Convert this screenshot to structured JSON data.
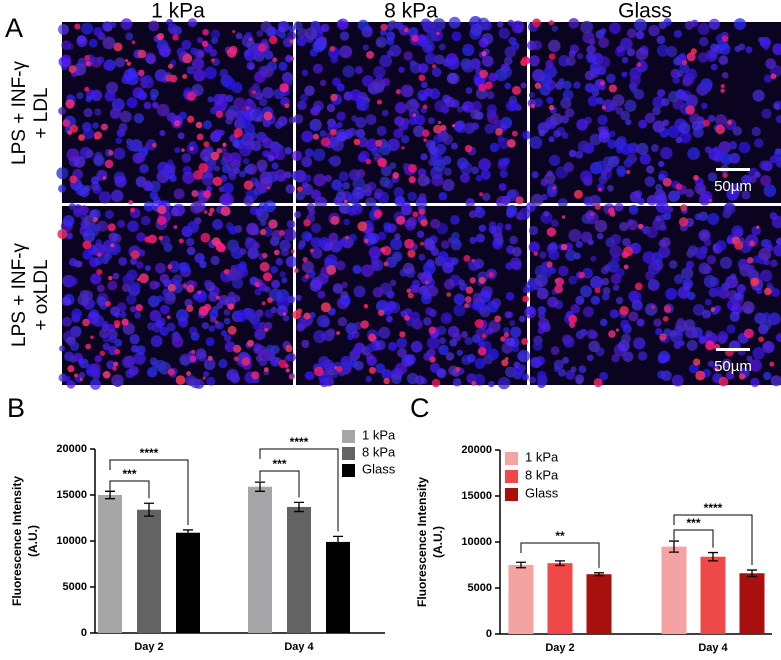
{
  "panel_labels": [
    "A",
    "B",
    "C"
  ],
  "microscopy": {
    "columns": [
      "1 kPa",
      "8 kPa",
      "Glass"
    ],
    "rows": [
      [
        "LPS + INF-γ",
        "+ LDL"
      ],
      [
        "LPS + INF-γ",
        "+ oxLDL"
      ]
    ],
    "scale_bar": "50µm"
  },
  "chart_data": [
    {
      "type": "bar",
      "ylabel": [
        "Fluorescence Intensity",
        "(A.U.)"
      ],
      "categories": [
        "Day 2",
        "Day 4"
      ],
      "series": [
        {
          "name": "1 kPa",
          "color": "#a6a6a8",
          "values": [
            15000,
            15900
          ],
          "errors": [
            400,
            500
          ]
        },
        {
          "name": "8 kPa",
          "color": "#636363",
          "values": [
            13400,
            13700
          ],
          "errors": [
            700,
            500
          ]
        },
        {
          "name": "Glass",
          "color": "#000000",
          "values": [
            10900,
            9900
          ],
          "errors": [
            300,
            600
          ]
        }
      ],
      "ylim": [
        0,
        20000
      ],
      "yticks": [
        0,
        5000,
        10000,
        15000,
        20000
      ],
      "annotations": [
        "***",
        "****",
        "***",
        "****"
      ]
    },
    {
      "type": "bar",
      "ylabel": [
        "Fluorescence Intensity",
        "(A.U.)"
      ],
      "categories": [
        "Day 2",
        "Day 4"
      ],
      "series": [
        {
          "name": "1 kPa",
          "color": "#f4a3a3",
          "values": [
            7500,
            9500
          ],
          "errors": [
            300,
            600
          ]
        },
        {
          "name": "8 kPa",
          "color": "#ef4848",
          "values": [
            7700,
            8400
          ],
          "errors": [
            250,
            450
          ]
        },
        {
          "name": "Glass",
          "color": "#a80f0f",
          "values": [
            6500,
            6600
          ],
          "errors": [
            150,
            350
          ]
        }
      ],
      "ylim": [
        0,
        20000
      ],
      "yticks": [
        0,
        5000,
        10000,
        15000,
        20000
      ],
      "annotations": [
        "**",
        "***",
        "****"
      ]
    }
  ]
}
